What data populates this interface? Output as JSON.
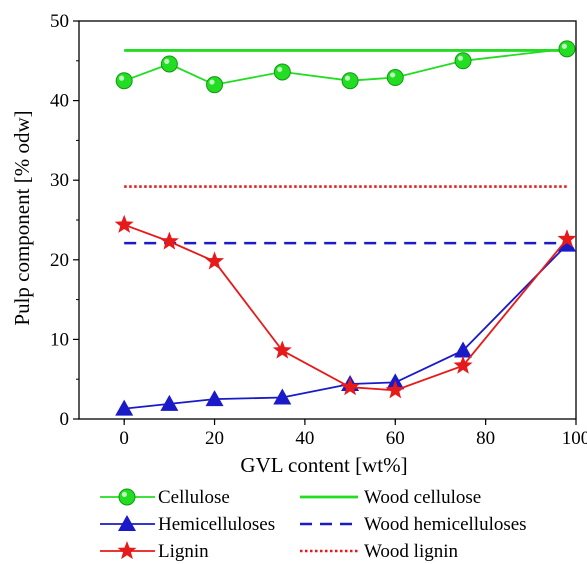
{
  "chart_data": {
    "type": "line",
    "title": "",
    "xlabel": "GVL content [wt%]",
    "ylabel": "Pulp component [% odw]",
    "xlim": [
      -10,
      100
    ],
    "ylim": [
      0,
      50
    ],
    "xticks": [
      0,
      20,
      40,
      60,
      80,
      100
    ],
    "yticks": [
      0,
      10,
      20,
      30,
      40,
      50
    ],
    "grid": false,
    "legend_position": "bottom",
    "x": [
      0,
      10,
      20,
      35,
      50,
      60,
      75,
      98
    ],
    "series": [
      {
        "name": "Cellulose",
        "color": "#22dd22",
        "marker": "circle",
        "values": [
          42.5,
          44.6,
          42.0,
          43.6,
          42.5,
          42.9,
          45.0,
          46.5
        ]
      },
      {
        "name": "Hemicelluloses",
        "color": "#1a1ac8",
        "marker": "triangle",
        "values": [
          1.3,
          1.9,
          2.5,
          2.7,
          4.4,
          4.6,
          8.6,
          21.9
        ]
      },
      {
        "name": "Lignin",
        "color": "#e61a1a",
        "marker": "star",
        "values": [
          24.4,
          22.3,
          19.8,
          8.6,
          4.0,
          3.6,
          6.7,
          22.6
        ]
      }
    ],
    "reference_lines": [
      {
        "name": "Wood cellulose",
        "color": "#22dd22",
        "style": "solid",
        "value": 46.3
      },
      {
        "name": "Wood hemicelluloses",
        "color": "#1a1ac8",
        "style": "dashed",
        "value": 22.1
      },
      {
        "name": "Wood lignin",
        "color": "#e61a1a",
        "style": "dotted",
        "value": 29.2
      }
    ]
  }
}
